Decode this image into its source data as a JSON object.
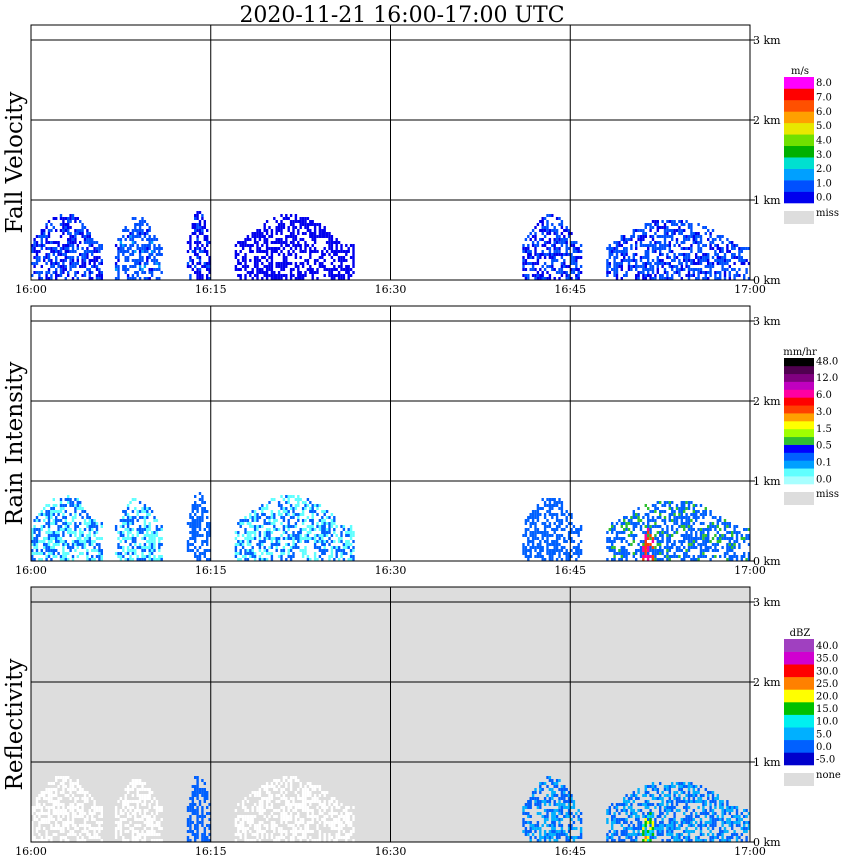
{
  "title": "2020-11-21   16:00-17:00 UTC",
  "x_ticks": [
    "16:00",
    "16:15",
    "16:30",
    "16:45",
    "17:00"
  ],
  "y_ticks": [
    "0 km",
    "1 km",
    "2 km",
    "3 km"
  ],
  "chart_data": [
    {
      "type": "heatmap",
      "title": "Fall Velocity",
      "xlabel": "",
      "ylabel": "Fall Velocity",
      "x_range": [
        "16:00",
        "17:00"
      ],
      "ylim": [
        0,
        3.2
      ],
      "grid": true,
      "background": "#ffffff",
      "colorbar": {
        "unit": "m/s",
        "labels": [
          "0.0",
          "1.0",
          "2.0",
          "3.0",
          "4.0",
          "5.0",
          "6.0",
          "7.0",
          "8.0"
        ],
        "colors": [
          "#0000ee",
          "#0050ff",
          "#00a0ff",
          "#00e0d0",
          "#00b000",
          "#70e000",
          "#e8e800",
          "#ffa000",
          "#ff5000",
          "#ff0000",
          "#ff00ff"
        ],
        "missing_label": "miss",
        "missing_color": "#dddddd"
      },
      "echoes": [
        {
          "t_start": "16:00",
          "t_end": "16:06",
          "top_km": 0.82,
          "value": 1.0
        },
        {
          "t_start": "16:07",
          "t_end": "16:11",
          "top_km": 0.78,
          "value": 1.5
        },
        {
          "t_start": "16:13",
          "t_end": "16:15",
          "top_km": 0.85,
          "value": 0.8
        },
        {
          "t_start": "16:17",
          "t_end": "16:27",
          "top_km": 0.8,
          "value": 0.7
        },
        {
          "t_start": "16:41",
          "t_end": "16:46",
          "top_km": 0.8,
          "value": 1.0
        },
        {
          "t_start": "16:48",
          "t_end": "17:00",
          "top_km": 0.75,
          "value": 1.2
        }
      ]
    },
    {
      "type": "heatmap",
      "title": "Rain Intensity",
      "xlabel": "",
      "ylabel": "Rain Intensity",
      "x_range": [
        "16:00",
        "17:00"
      ],
      "ylim": [
        0,
        3.2
      ],
      "grid": true,
      "background": "#ffffff",
      "colorbar": {
        "unit": "mm/hr",
        "labels": [
          "0.0",
          "0.1",
          "0.5",
          "1.5",
          "3.0",
          "6.0",
          "12.0",
          "48.0"
        ],
        "colors": [
          "#a8ffff",
          "#60ffff",
          "#00a0ff",
          "#0060ff",
          "#0000ff",
          "#30c030",
          "#a0ff00",
          "#ffff00",
          "#ffa000",
          "#ff4000",
          "#ff0000",
          "#ff00a0",
          "#c000c0",
          "#800080",
          "#500050",
          "#000000"
        ],
        "missing_label": "miss",
        "missing_color": "#dddddd"
      },
      "echoes": [
        {
          "t_start": "16:00",
          "t_end": "16:06",
          "top_km": 0.82,
          "value": 0.1
        },
        {
          "t_start": "16:07",
          "t_end": "16:11",
          "top_km": 0.78,
          "value": 0.1
        },
        {
          "t_start": "16:13",
          "t_end": "16:15",
          "top_km": 0.85,
          "value": 0.2
        },
        {
          "t_start": "16:17",
          "t_end": "16:27",
          "top_km": 0.8,
          "value": 0.1
        },
        {
          "t_start": "16:41",
          "t_end": "16:46",
          "top_km": 0.8,
          "value": 0.3
        },
        {
          "t_start": "16:48",
          "t_end": "17:00",
          "top_km": 0.75,
          "value": 0.4
        },
        {
          "t_start": "16:51",
          "t_end": "16:52",
          "top_km": 0.38,
          "value": 6.0
        }
      ]
    },
    {
      "type": "heatmap",
      "title": "Reflectivity",
      "xlabel": "",
      "ylabel": "Reflectivity",
      "x_range": [
        "16:00",
        "17:00"
      ],
      "ylim": [
        0,
        3.2
      ],
      "grid": true,
      "background": "#dddddd",
      "colorbar": {
        "unit": "dBZ",
        "labels": [
          "-5.0",
          "0.0",
          "5.0",
          "10.0",
          "15.0",
          "20.0",
          "25.0",
          "30.0",
          "35.0",
          "40.0"
        ],
        "colors": [
          "#0000cc",
          "#0060ff",
          "#00b0ff",
          "#00f0f0",
          "#00c000",
          "#ffff00",
          "#ff8000",
          "#ff0000",
          "#d000d0",
          "#a040c0"
        ],
        "missing_label": "none",
        "missing_color": "#dddddd"
      },
      "echoes": [
        {
          "t_start": "16:00",
          "t_end": "16:06",
          "top_km": 0.82,
          "value": -10.0
        },
        {
          "t_start": "16:07",
          "t_end": "16:11",
          "top_km": 0.78,
          "value": -10.0
        },
        {
          "t_start": "16:13",
          "t_end": "16:15",
          "top_km": 0.85,
          "value": 2.0
        },
        {
          "t_start": "16:17",
          "t_end": "16:27",
          "top_km": 0.8,
          "value": -10.0
        },
        {
          "t_start": "16:41",
          "t_end": "16:46",
          "top_km": 0.8,
          "value": 5.0
        },
        {
          "t_start": "16:48",
          "t_end": "17:00",
          "top_km": 0.75,
          "value": 5.0
        },
        {
          "t_start": "16:51",
          "t_end": "16:52",
          "top_km": 0.38,
          "value": 18.0
        }
      ]
    }
  ]
}
